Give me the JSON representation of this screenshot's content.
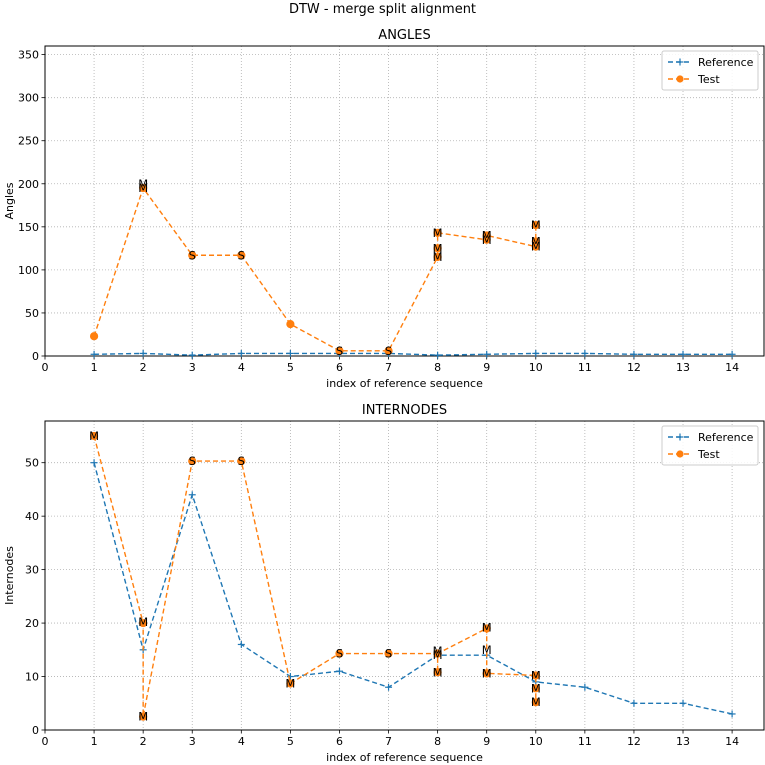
{
  "suptitle": "DTW - merge split alignment",
  "chart_data": [
    {
      "type": "line",
      "title": "ANGLES",
      "xlabel": "index of reference sequence",
      "ylabel": "Angles",
      "xlim": [
        0,
        14.65
      ],
      "ylim": [
        0,
        360
      ],
      "xticks": [
        0,
        1,
        2,
        3,
        4,
        5,
        6,
        7,
        8,
        9,
        10,
        11,
        12,
        13,
        14
      ],
      "yticks": [
        0,
        50,
        100,
        150,
        200,
        250,
        300,
        350
      ],
      "grid": true,
      "legend_position": "upper right",
      "series": [
        {
          "name": "Reference",
          "color": "#1f77b4",
          "marker": "+",
          "x": [
            1,
            2,
            3,
            4,
            5,
            6,
            7,
            8,
            9,
            10,
            11,
            12,
            13,
            14
          ],
          "y": [
            2,
            3,
            1,
            3,
            3,
            3,
            3,
            1,
            2,
            3,
            3,
            2,
            2,
            2
          ]
        },
        {
          "name": "Test",
          "color": "#ff7f0e",
          "marker": "o",
          "x": [
            1,
            2,
            3,
            4,
            5,
            6,
            7,
            8,
            8,
            8,
            9,
            9,
            10,
            10,
            10
          ],
          "y": [
            23,
            195,
            117,
            117,
            37,
            6,
            6,
            115,
            125,
            143,
            135,
            140,
            127,
            133,
            152
          ]
        }
      ],
      "annotations": [
        {
          "x": 2,
          "y": 200,
          "text": "M"
        },
        {
          "x": 2,
          "y": 195,
          "text": "M"
        },
        {
          "x": 3,
          "y": 117,
          "text": "S"
        },
        {
          "x": 4,
          "y": 117,
          "text": "S"
        },
        {
          "x": 6,
          "y": 6,
          "text": "S"
        },
        {
          "x": 7,
          "y": 6,
          "text": "S"
        },
        {
          "x": 8,
          "y": 143,
          "text": "M"
        },
        {
          "x": 8,
          "y": 125,
          "text": "M"
        },
        {
          "x": 8,
          "y": 115,
          "text": "M"
        },
        {
          "x": 9,
          "y": 140,
          "text": "M"
        },
        {
          "x": 9,
          "y": 135,
          "text": "M"
        },
        {
          "x": 10,
          "y": 152,
          "text": "M"
        },
        {
          "x": 10,
          "y": 133,
          "text": "M"
        },
        {
          "x": 10,
          "y": 127,
          "text": "M"
        }
      ]
    },
    {
      "type": "line",
      "title": "INTERNODES",
      "xlabel": "index of reference sequence",
      "ylabel": "Internodes",
      "xlim": [
        0,
        14.65
      ],
      "ylim": [
        0,
        57.8
      ],
      "xticks": [
        0,
        1,
        2,
        3,
        4,
        5,
        6,
        7,
        8,
        9,
        10,
        11,
        12,
        13,
        14
      ],
      "yticks": [
        0,
        10,
        20,
        30,
        40,
        50
      ],
      "grid": true,
      "legend_position": "upper right",
      "series": [
        {
          "name": "Reference",
          "color": "#1f77b4",
          "marker": "+",
          "x": [
            1,
            2,
            3,
            4,
            5,
            6,
            7,
            8,
            9,
            10,
            11,
            12,
            13,
            14
          ],
          "y": [
            50,
            15,
            44,
            16,
            10,
            11,
            8,
            14,
            14,
            9,
            8,
            5,
            5,
            3
          ]
        },
        {
          "name": "Test",
          "color": "#ff7f0e",
          "marker": "o",
          "x": [
            1,
            2,
            2,
            3,
            4,
            5,
            6,
            7,
            8,
            8,
            8,
            9,
            9,
            9,
            10,
            10,
            10
          ],
          "y": [
            55,
            20,
            2.5,
            50.3,
            50.3,
            8.7,
            14.3,
            14.3,
            14.3,
            10.8,
            14.3,
            19,
            10.6,
            10.6,
            10.2,
            7.8,
            5.2
          ]
        }
      ],
      "annotations": [
        {
          "x": 1,
          "y": 55,
          "text": "M"
        },
        {
          "x": 2,
          "y": 20.2,
          "text": "M"
        },
        {
          "x": 2,
          "y": 2.5,
          "text": "M"
        },
        {
          "x": 3,
          "y": 50.3,
          "text": "S"
        },
        {
          "x": 4,
          "y": 50.3,
          "text": "S"
        },
        {
          "x": 5,
          "y": 8.7,
          "text": "M"
        },
        {
          "x": 6,
          "y": 14.3,
          "text": "S"
        },
        {
          "x": 7,
          "y": 14.3,
          "text": "S"
        },
        {
          "x": 8,
          "y": 14.8,
          "text": "M"
        },
        {
          "x": 8,
          "y": 14.0,
          "text": "M"
        },
        {
          "x": 8,
          "y": 10.8,
          "text": "M"
        },
        {
          "x": 9,
          "y": 19.2,
          "text": "M"
        },
        {
          "x": 9,
          "y": 15.0,
          "text": "M"
        },
        {
          "x": 9,
          "y": 10.6,
          "text": "M"
        },
        {
          "x": 10,
          "y": 10.2,
          "text": "M"
        },
        {
          "x": 10,
          "y": 7.8,
          "text": "M"
        },
        {
          "x": 10,
          "y": 5.2,
          "text": "M"
        }
      ]
    }
  ]
}
